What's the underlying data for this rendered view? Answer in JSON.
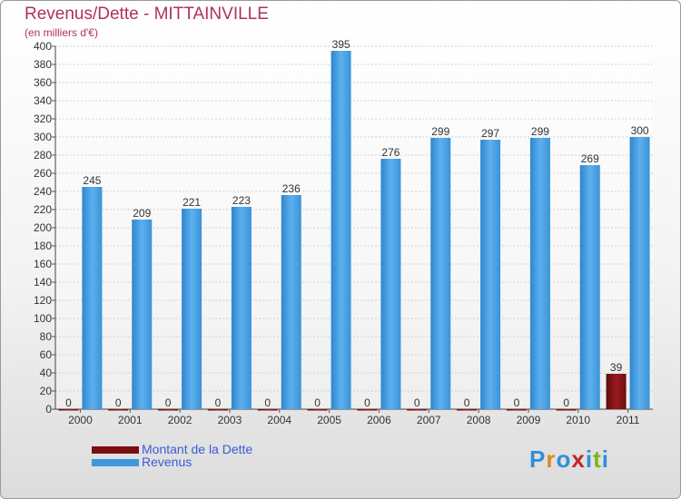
{
  "title": "Revenus/Dette - MITTAINVILLE",
  "subtitle": "(en milliers d'€)",
  "chart_data": {
    "type": "bar",
    "categories": [
      "2000",
      "2001",
      "2002",
      "2003",
      "2004",
      "2005",
      "2006",
      "2007",
      "2008",
      "2009",
      "2010",
      "2011"
    ],
    "series": [
      {
        "name": "Montant de la Dette",
        "color": "#7a0f12",
        "values": [
          0,
          0,
          0,
          0,
          0,
          0,
          0,
          0,
          0,
          0,
          0,
          39
        ]
      },
      {
        "name": "Revenus",
        "color": "#3e98dd",
        "values": [
          245,
          209,
          221,
          223,
          236,
          395,
          276,
          299,
          297,
          299,
          269,
          300
        ]
      }
    ],
    "ylim": [
      0,
      400
    ],
    "yticks": [
      0,
      20,
      40,
      60,
      80,
      100,
      120,
      140,
      160,
      180,
      200,
      220,
      240,
      260,
      280,
      300,
      320,
      340,
      360,
      380,
      400
    ],
    "grid": true,
    "legend": "bottom-left"
  },
  "legend": [
    {
      "label": "Montant de la Dette",
      "color": "#7a0f12"
    },
    {
      "label": "Revenus",
      "color": "#3e98dd"
    }
  ],
  "logo": {
    "letters": [
      "P",
      "r",
      "o",
      "x",
      "i",
      "t",
      "i"
    ],
    "colors": [
      "#2f8fd8",
      "#e08a1c",
      "#2f8fd8",
      "#c0262c",
      "#2f8fd8",
      "#7ab51d",
      "#2f8fd8"
    ]
  }
}
